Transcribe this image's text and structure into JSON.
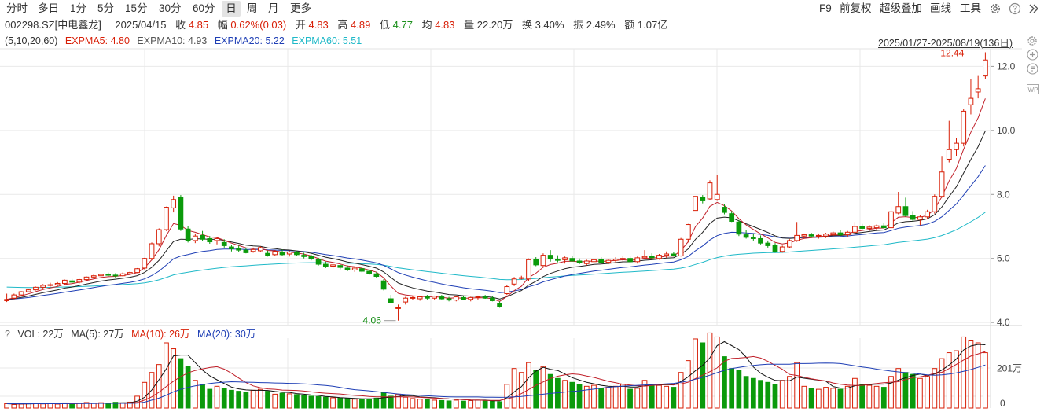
{
  "toolbar": {
    "tabs": [
      {
        "label": "分时",
        "name": "tab-intraday"
      },
      {
        "label": "多日",
        "name": "tab-multiday"
      },
      {
        "label": "1分",
        "name": "tab-1min"
      },
      {
        "label": "5分",
        "name": "tab-5min"
      },
      {
        "label": "15分",
        "name": "tab-15min"
      },
      {
        "label": "30分",
        "name": "tab-30min"
      },
      {
        "label": "60分",
        "name": "tab-60min"
      },
      {
        "label": "日",
        "name": "tab-day"
      },
      {
        "label": "周",
        "name": "tab-week"
      },
      {
        "label": "月",
        "name": "tab-month"
      },
      {
        "label": "更多",
        "name": "tab-more"
      }
    ],
    "active_tab": "日",
    "right": {
      "f9": "F9",
      "adjust": "前复权",
      "overlay": "超级叠加",
      "draw": "画线",
      "tools": "工具"
    }
  },
  "info": {
    "code": "002298.SZ[中电鑫龙]",
    "date": "2025/04/15",
    "close_label": "收",
    "close": "4.85",
    "change_label": "幅",
    "change": "0.62%(0.03)",
    "open_label": "开",
    "open": "4.83",
    "high_label": "高",
    "high": "4.89",
    "low_label": "低",
    "low": "4.77",
    "avg_label": "均",
    "avg": "4.83",
    "volume_label": "量",
    "volume": "22.20万",
    "turnover_label": "换",
    "turnover": "3.40%",
    "amplitude_label": "振",
    "amplitude": "2.49%",
    "amount_label": "额",
    "amount": "1.07亿"
  },
  "ma_legend": {
    "params": "(5,10,20,60)",
    "ma5": "EXPMA5: 4.80",
    "ma10": "EXPMA10: 4.93",
    "ma20": "EXPMA20: 5.22",
    "ma60": "EXPMA60: 5.51"
  },
  "date_range": "2025/01/27-2025/08/19(136日)",
  "vol_legend": {
    "q": "?",
    "vol": "VOL: 22万",
    "ma5": "MA(5): 27万",
    "ma10": "MA(10): 26万",
    "ma20": "MA(20): 30万"
  },
  "colors": {
    "up": "#d81e06",
    "down": "#0b9a0b",
    "ma5": "#c0202a",
    "ma10": "#222222",
    "ma20": "#1f3fb5",
    "ma60": "#1fb9c8",
    "grid": "#e9e9e9"
  },
  "chart_data": {
    "type": "candlestick",
    "y_ticks": [
      4.0,
      6.0,
      8.0,
      10.0,
      12.0
    ],
    "ylim": [
      3.93,
      12.55
    ],
    "high_marker": "12.44",
    "low_marker": "4.06",
    "vol_ticks": [
      "201万",
      "0"
    ],
    "vol_max_wan": 330,
    "ohlc": [
      [
        4.68,
        4.9,
        4.64,
        4.72
      ],
      [
        4.76,
        4.9,
        4.72,
        4.86
      ],
      [
        4.86,
        4.98,
        4.84,
        4.96
      ],
      [
        4.96,
        5.04,
        4.94,
        5.02
      ],
      [
        5.02,
        5.12,
        5.0,
        5.1
      ],
      [
        5.1,
        5.2,
        5.06,
        5.16
      ],
      [
        5.16,
        5.24,
        5.12,
        5.18
      ],
      [
        5.18,
        5.26,
        5.12,
        5.22
      ],
      [
        5.22,
        5.34,
        5.18,
        5.32
      ],
      [
        5.3,
        5.36,
        5.24,
        5.26
      ],
      [
        5.26,
        5.36,
        5.22,
        5.34
      ],
      [
        5.34,
        5.44,
        5.3,
        5.42
      ],
      [
        5.42,
        5.5,
        5.36,
        5.46
      ],
      [
        5.46,
        5.52,
        5.42,
        5.5
      ],
      [
        5.5,
        5.56,
        5.44,
        5.48
      ],
      [
        5.48,
        5.54,
        5.4,
        5.46
      ],
      [
        5.46,
        5.56,
        5.44,
        5.52
      ],
      [
        5.52,
        5.6,
        5.5,
        5.56
      ],
      [
        5.56,
        5.7,
        5.54,
        5.68
      ],
      [
        5.7,
        6.02,
        5.66,
        6.0
      ],
      [
        6.0,
        6.5,
        5.94,
        6.46
      ],
      [
        6.46,
        6.94,
        6.38,
        6.9
      ],
      [
        6.9,
        7.62,
        6.86,
        7.6
      ],
      [
        7.58,
        7.96,
        7.44,
        7.84
      ],
      [
        7.9,
        7.98,
        6.86,
        6.92
      ],
      [
        6.92,
        7.0,
        6.5,
        6.56
      ],
      [
        6.56,
        6.78,
        6.48,
        6.7
      ],
      [
        6.72,
        6.86,
        6.54,
        6.6
      ],
      [
        6.62,
        6.7,
        6.46,
        6.52
      ],
      [
        6.56,
        6.68,
        6.44,
        6.62
      ],
      [
        6.5,
        6.6,
        6.34,
        6.4
      ],
      [
        6.36,
        6.42,
        6.22,
        6.3
      ],
      [
        6.32,
        6.4,
        6.2,
        6.26
      ],
      [
        6.26,
        6.34,
        6.16,
        6.18
      ],
      [
        6.22,
        6.34,
        6.18,
        6.28
      ],
      [
        6.24,
        6.38,
        6.2,
        6.34
      ],
      [
        6.16,
        6.24,
        6.06,
        6.1
      ],
      [
        6.12,
        6.26,
        6.08,
        6.22
      ],
      [
        6.2,
        6.28,
        6.08,
        6.12
      ],
      [
        6.14,
        6.24,
        6.06,
        6.2
      ],
      [
        6.18,
        6.24,
        6.08,
        6.12
      ],
      [
        6.1,
        6.18,
        6.0,
        6.06
      ],
      [
        6.06,
        6.12,
        5.94,
        5.98
      ],
      [
        5.98,
        6.02,
        5.78,
        5.82
      ],
      [
        5.82,
        5.9,
        5.7,
        5.76
      ],
      [
        5.76,
        5.84,
        5.68,
        5.8
      ],
      [
        5.78,
        5.82,
        5.66,
        5.72
      ],
      [
        5.7,
        5.78,
        5.6,
        5.64
      ],
      [
        5.64,
        5.74,
        5.58,
        5.7
      ],
      [
        5.68,
        5.72,
        5.56,
        5.6
      ],
      [
        5.6,
        5.66,
        5.48,
        5.52
      ],
      [
        5.52,
        5.58,
        5.4,
        5.44
      ],
      [
        5.3,
        5.36,
        5.0,
        5.04
      ],
      [
        4.74,
        4.86,
        4.6,
        4.62
      ],
      [
        4.44,
        4.56,
        4.06,
        4.46
      ],
      [
        4.64,
        4.8,
        4.56,
        4.76
      ],
      [
        4.76,
        4.84,
        4.7,
        4.78
      ],
      [
        4.74,
        4.82,
        4.68,
        4.8
      ],
      [
        4.8,
        4.86,
        4.72,
        4.76
      ],
      [
        4.76,
        4.84,
        4.72,
        4.82
      ],
      [
        4.8,
        4.86,
        4.72,
        4.74
      ],
      [
        4.74,
        4.8,
        4.66,
        4.7
      ],
      [
        4.7,
        4.82,
        4.66,
        4.8
      ],
      [
        4.78,
        4.84,
        4.7,
        4.72
      ],
      [
        4.72,
        4.8,
        4.66,
        4.78
      ],
      [
        4.78,
        4.84,
        4.72,
        4.8
      ],
      [
        4.8,
        4.86,
        4.74,
        4.76
      ],
      [
        4.76,
        4.82,
        4.66,
        4.68
      ],
      [
        4.6,
        4.66,
        4.46,
        4.5
      ],
      [
        4.9,
        5.16,
        4.86,
        5.12
      ],
      [
        5.2,
        5.42,
        5.14,
        5.36
      ],
      [
        5.4,
        5.46,
        5.34,
        5.4
      ],
      [
        5.36,
        6.0,
        5.3,
        5.96
      ],
      [
        5.96,
        6.04,
        5.76,
        5.8
      ],
      [
        5.78,
        6.16,
        5.72,
        6.1
      ],
      [
        6.1,
        6.26,
        5.9,
        5.98
      ],
      [
        5.98,
        6.1,
        5.88,
        5.94
      ],
      [
        5.96,
        6.06,
        5.84,
        6.02
      ],
      [
        6.0,
        6.08,
        5.9,
        5.92
      ],
      [
        5.92,
        6.0,
        5.82,
        5.86
      ],
      [
        5.84,
        5.96,
        5.78,
        5.92
      ],
      [
        5.9,
        6.0,
        5.82,
        5.96
      ],
      [
        5.96,
        6.04,
        5.86,
        5.88
      ],
      [
        5.88,
        5.98,
        5.82,
        5.94
      ],
      [
        5.94,
        6.04,
        5.86,
        5.98
      ],
      [
        5.98,
        6.08,
        5.9,
        6.0
      ],
      [
        6.0,
        6.06,
        5.88,
        5.9
      ],
      [
        5.9,
        6.06,
        5.84,
        6.02
      ],
      [
        6.02,
        6.26,
        5.98,
        6.06
      ],
      [
        6.06,
        6.16,
        5.98,
        6.02
      ],
      [
        6.0,
        6.14,
        5.96,
        6.1
      ],
      [
        6.1,
        6.22,
        6.02,
        6.14
      ],
      [
        6.14,
        6.2,
        6.06,
        6.08
      ],
      [
        6.08,
        6.64,
        6.06,
        6.6
      ],
      [
        6.6,
        7.08,
        6.5,
        7.06
      ],
      [
        7.5,
        7.94,
        7.5,
        7.94
      ],
      [
        7.92,
        7.98,
        7.72,
        7.8
      ],
      [
        7.86,
        8.44,
        7.82,
        8.36
      ],
      [
        7.84,
        8.6,
        7.8,
        8.0
      ],
      [
        7.6,
        7.7,
        7.38,
        7.44
      ],
      [
        7.4,
        7.48,
        7.14,
        7.16
      ],
      [
        7.14,
        7.2,
        6.7,
        6.76
      ],
      [
        6.74,
        6.88,
        6.62,
        6.66
      ],
      [
        6.66,
        6.76,
        6.56,
        6.62
      ],
      [
        6.62,
        6.72,
        6.44,
        6.48
      ],
      [
        6.48,
        6.56,
        6.34,
        6.4
      ],
      [
        6.42,
        6.48,
        6.18,
        6.22
      ],
      [
        6.22,
        6.4,
        6.18,
        6.36
      ],
      [
        6.36,
        6.6,
        6.32,
        6.56
      ],
      [
        6.56,
        7.14,
        6.52,
        6.72
      ],
      [
        6.7,
        6.78,
        6.62,
        6.74
      ],
      [
        6.74,
        6.8,
        6.64,
        6.7
      ],
      [
        6.7,
        6.78,
        6.62,
        6.72
      ],
      [
        6.7,
        6.8,
        6.64,
        6.76
      ],
      [
        6.74,
        6.84,
        6.66,
        6.8
      ],
      [
        6.8,
        6.88,
        6.7,
        6.74
      ],
      [
        6.74,
        6.86,
        6.68,
        6.82
      ],
      [
        6.82,
        7.14,
        6.76,
        7.0
      ],
      [
        7.0,
        7.08,
        6.9,
        6.94
      ],
      [
        6.94,
        7.04,
        6.86,
        6.98
      ],
      [
        6.96,
        7.06,
        6.9,
        7.02
      ],
      [
        7.02,
        7.1,
        6.94,
        6.96
      ],
      [
        6.96,
        7.62,
        6.9,
        7.46
      ],
      [
        7.42,
        8.08,
        7.38,
        7.62
      ],
      [
        7.62,
        7.9,
        7.3,
        7.34
      ],
      [
        7.34,
        7.48,
        7.16,
        7.22
      ],
      [
        7.22,
        7.36,
        7.04,
        7.3
      ],
      [
        7.3,
        7.52,
        7.22,
        7.46
      ],
      [
        7.46,
        8.0,
        7.4,
        7.94
      ],
      [
        7.94,
        9.18,
        7.9,
        8.7
      ],
      [
        9.1,
        10.3,
        9.0,
        9.4
      ],
      [
        9.4,
        9.76,
        9.2,
        9.6
      ],
      [
        9.6,
        10.66,
        9.5,
        10.6
      ],
      [
        10.8,
        11.6,
        10.5,
        11.0
      ],
      [
        11.2,
        11.7,
        11.0,
        11.3
      ],
      [
        11.7,
        12.44,
        11.6,
        12.2
      ]
    ],
    "volume_wan": [
      22,
      18,
      20,
      23,
      25,
      21,
      24,
      20,
      26,
      22,
      25,
      28,
      24,
      27,
      23,
      29,
      26,
      30,
      60,
      130,
      180,
      220,
      330,
      300,
      250,
      210,
      140,
      120,
      95,
      110,
      100,
      90,
      85,
      80,
      90,
      95,
      85,
      70,
      75,
      72,
      68,
      65,
      60,
      58,
      55,
      52,
      50,
      48,
      45,
      42,
      45,
      50,
      80,
      60,
      70,
      55,
      48,
      45,
      42,
      40,
      38,
      36,
      40,
      35,
      38,
      40,
      36,
      34,
      32,
      120,
      200,
      180,
      230,
      190,
      210,
      170,
      150,
      140,
      130,
      120,
      110,
      115,
      100,
      105,
      110,
      120,
      95,
      100,
      140,
      120,
      115,
      110,
      105,
      180,
      240,
      350,
      330,
      380,
      360,
      260,
      200,
      190,
      160,
      150,
      140,
      130,
      120,
      140,
      160,
      230,
      110,
      100,
      95,
      105,
      100,
      95,
      110,
      150,
      120,
      115,
      110,
      105,
      160,
      200,
      180,
      170,
      150,
      160,
      200,
      250,
      280,
      290,
      360,
      340,
      330,
      280
    ],
    "vol_ma5_wan": [
      22,
      21,
      21,
      21,
      22,
      22,
      23,
      22,
      24,
      24,
      24,
      25,
      25,
      26,
      26,
      26,
      27,
      27,
      35,
      54,
      91,
      143,
      198,
      264,
      268,
      268,
      230,
      192,
      163,
      143,
      124,
      106,
      97,
      92,
      90,
      90,
      89,
      84,
      80,
      79,
      73,
      70,
      66,
      64,
      59,
      56,
      53,
      51,
      49,
      47,
      47,
      47,
      53,
      55,
      59,
      63,
      63,
      56,
      54,
      52,
      49,
      46,
      45,
      43,
      41,
      40,
      40,
      37,
      37,
      52,
      82,
      108,
      154,
      187,
      206,
      196,
      190,
      172,
      154,
      142,
      130,
      123,
      115,
      110,
      108,
      110,
      106,
      106,
      113,
      116,
      117,
      118,
      117,
      134,
      158,
      189,
      216,
      254,
      316,
      336,
      316,
      296,
      258,
      208,
      176,
      156,
      140,
      138,
      138,
      157,
      151,
      146,
      141,
      136,
      109,
      101,
      101,
      113,
      116,
      118,
      121,
      121,
      126,
      141,
      153,
      165,
      172,
      164,
      172,
      192,
      218,
      248,
      294,
      314,
      322,
      320
    ],
    "vol_ma10_wan": [
      22,
      21,
      21,
      22,
      22,
      22,
      22,
      22,
      22,
      22,
      23,
      24,
      24,
      24,
      25,
      26,
      26,
      26,
      29,
      40,
      57,
      80,
      109,
      136,
      159,
      178,
      190,
      198,
      205,
      209,
      197,
      176,
      152,
      129,
      112,
      103,
      97,
      95,
      91,
      90,
      89,
      86,
      82,
      78,
      75,
      73,
      71,
      67,
      64,
      62,
      59,
      57,
      57,
      56,
      57,
      57,
      56,
      54,
      52,
      50,
      48,
      46,
      45,
      43,
      41,
      40,
      39,
      39,
      39,
      46,
      56,
      73,
      94,
      115,
      132,
      150,
      161,
      168,
      173,
      170,
      162,
      155,
      145,
      135,
      128,
      120,
      116,
      112,
      111,
      114,
      118,
      120,
      118,
      122,
      131,
      149,
      166,
      184,
      203,
      237,
      251,
      253,
      256,
      261,
      253,
      236,
      216,
      196,
      170,
      165,
      156,
      148,
      142,
      137,
      127,
      120,
      116,
      114,
      114,
      120,
      124,
      128,
      131,
      133,
      144,
      154,
      158,
      165,
      176,
      181,
      200,
      221,
      243,
      263,
      274,
      286
    ],
    "vol_ma20_wan": [
      22,
      22,
      22,
      22,
      22,
      22,
      22,
      22,
      22,
      23,
      23,
      23,
      23,
      24,
      24,
      24,
      24,
      24,
      25,
      30,
      40,
      50,
      65,
      82,
      95,
      105,
      112,
      118,
      124,
      128,
      131,
      133,
      132,
      131,
      130,
      129,
      128,
      127,
      126,
      125,
      124,
      122,
      120,
      117,
      114,
      110,
      104,
      98,
      93,
      90,
      87,
      83,
      79,
      75,
      71,
      68,
      66,
      64,
      62,
      60,
      58,
      57,
      56,
      56,
      56,
      56,
      55,
      55,
      54,
      55,
      57,
      59,
      63,
      66,
      70,
      74,
      77,
      81,
      84,
      87,
      92,
      96,
      101,
      105,
      108,
      111,
      113,
      115,
      117,
      118,
      120,
      123,
      125,
      130,
      137,
      146,
      155,
      166,
      179,
      191,
      200,
      206,
      211,
      216,
      219,
      222,
      222,
      222,
      222,
      225,
      225,
      226,
      227,
      228,
      227,
      225,
      220,
      214,
      208,
      203,
      197,
      192,
      187,
      183,
      179,
      176,
      172,
      168,
      166,
      168,
      172,
      178,
      186,
      195,
      206,
      218
    ]
  }
}
